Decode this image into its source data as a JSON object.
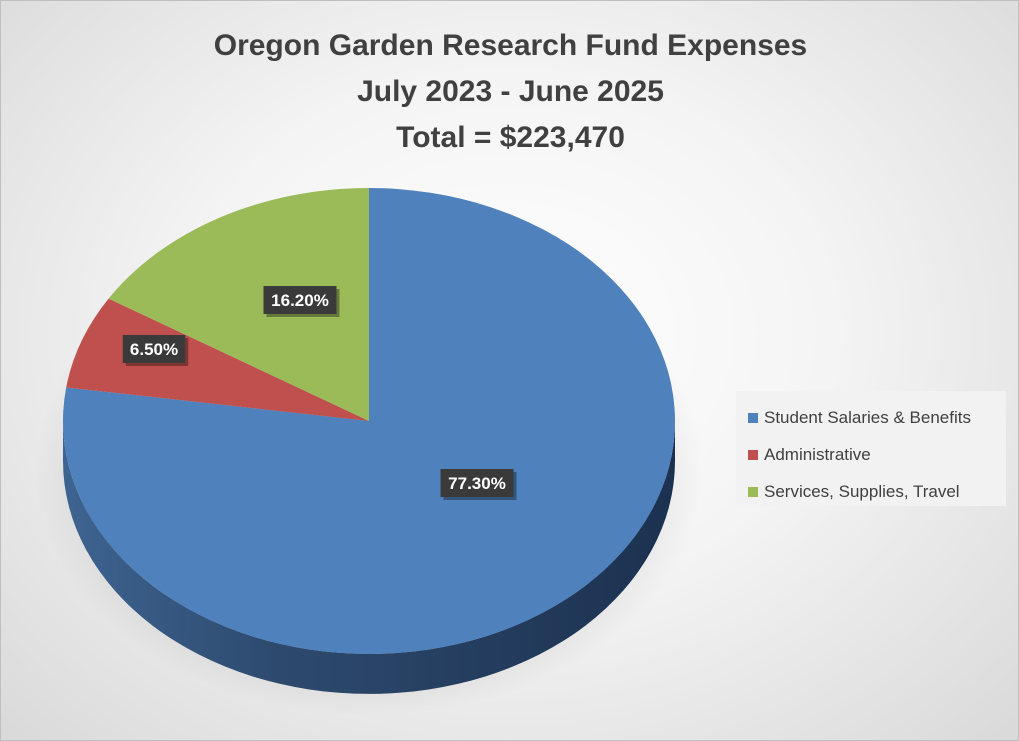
{
  "title_lines": [
    "Oregon Garden Research Fund Expenses",
    "July 2023 - June 2025",
    "Total = $223,470"
  ],
  "chart_data": {
    "type": "pie",
    "title": "Oregon Garden Research Fund Expenses July 2023 - June 2025 Total = $223,470",
    "three_d": true,
    "legend_position": "right",
    "slices": [
      {
        "name": "Student Salaries & Benefits",
        "value": 77.3,
        "label": "77.30%",
        "color": "#4f81bd"
      },
      {
        "name": "Administrative",
        "value": 6.5,
        "label": "6.50%",
        "color": "#c0504d"
      },
      {
        "name": "Services, Supplies, Travel",
        "value": 16.2,
        "label": "16.20%",
        "color": "#9bbb59"
      }
    ]
  }
}
